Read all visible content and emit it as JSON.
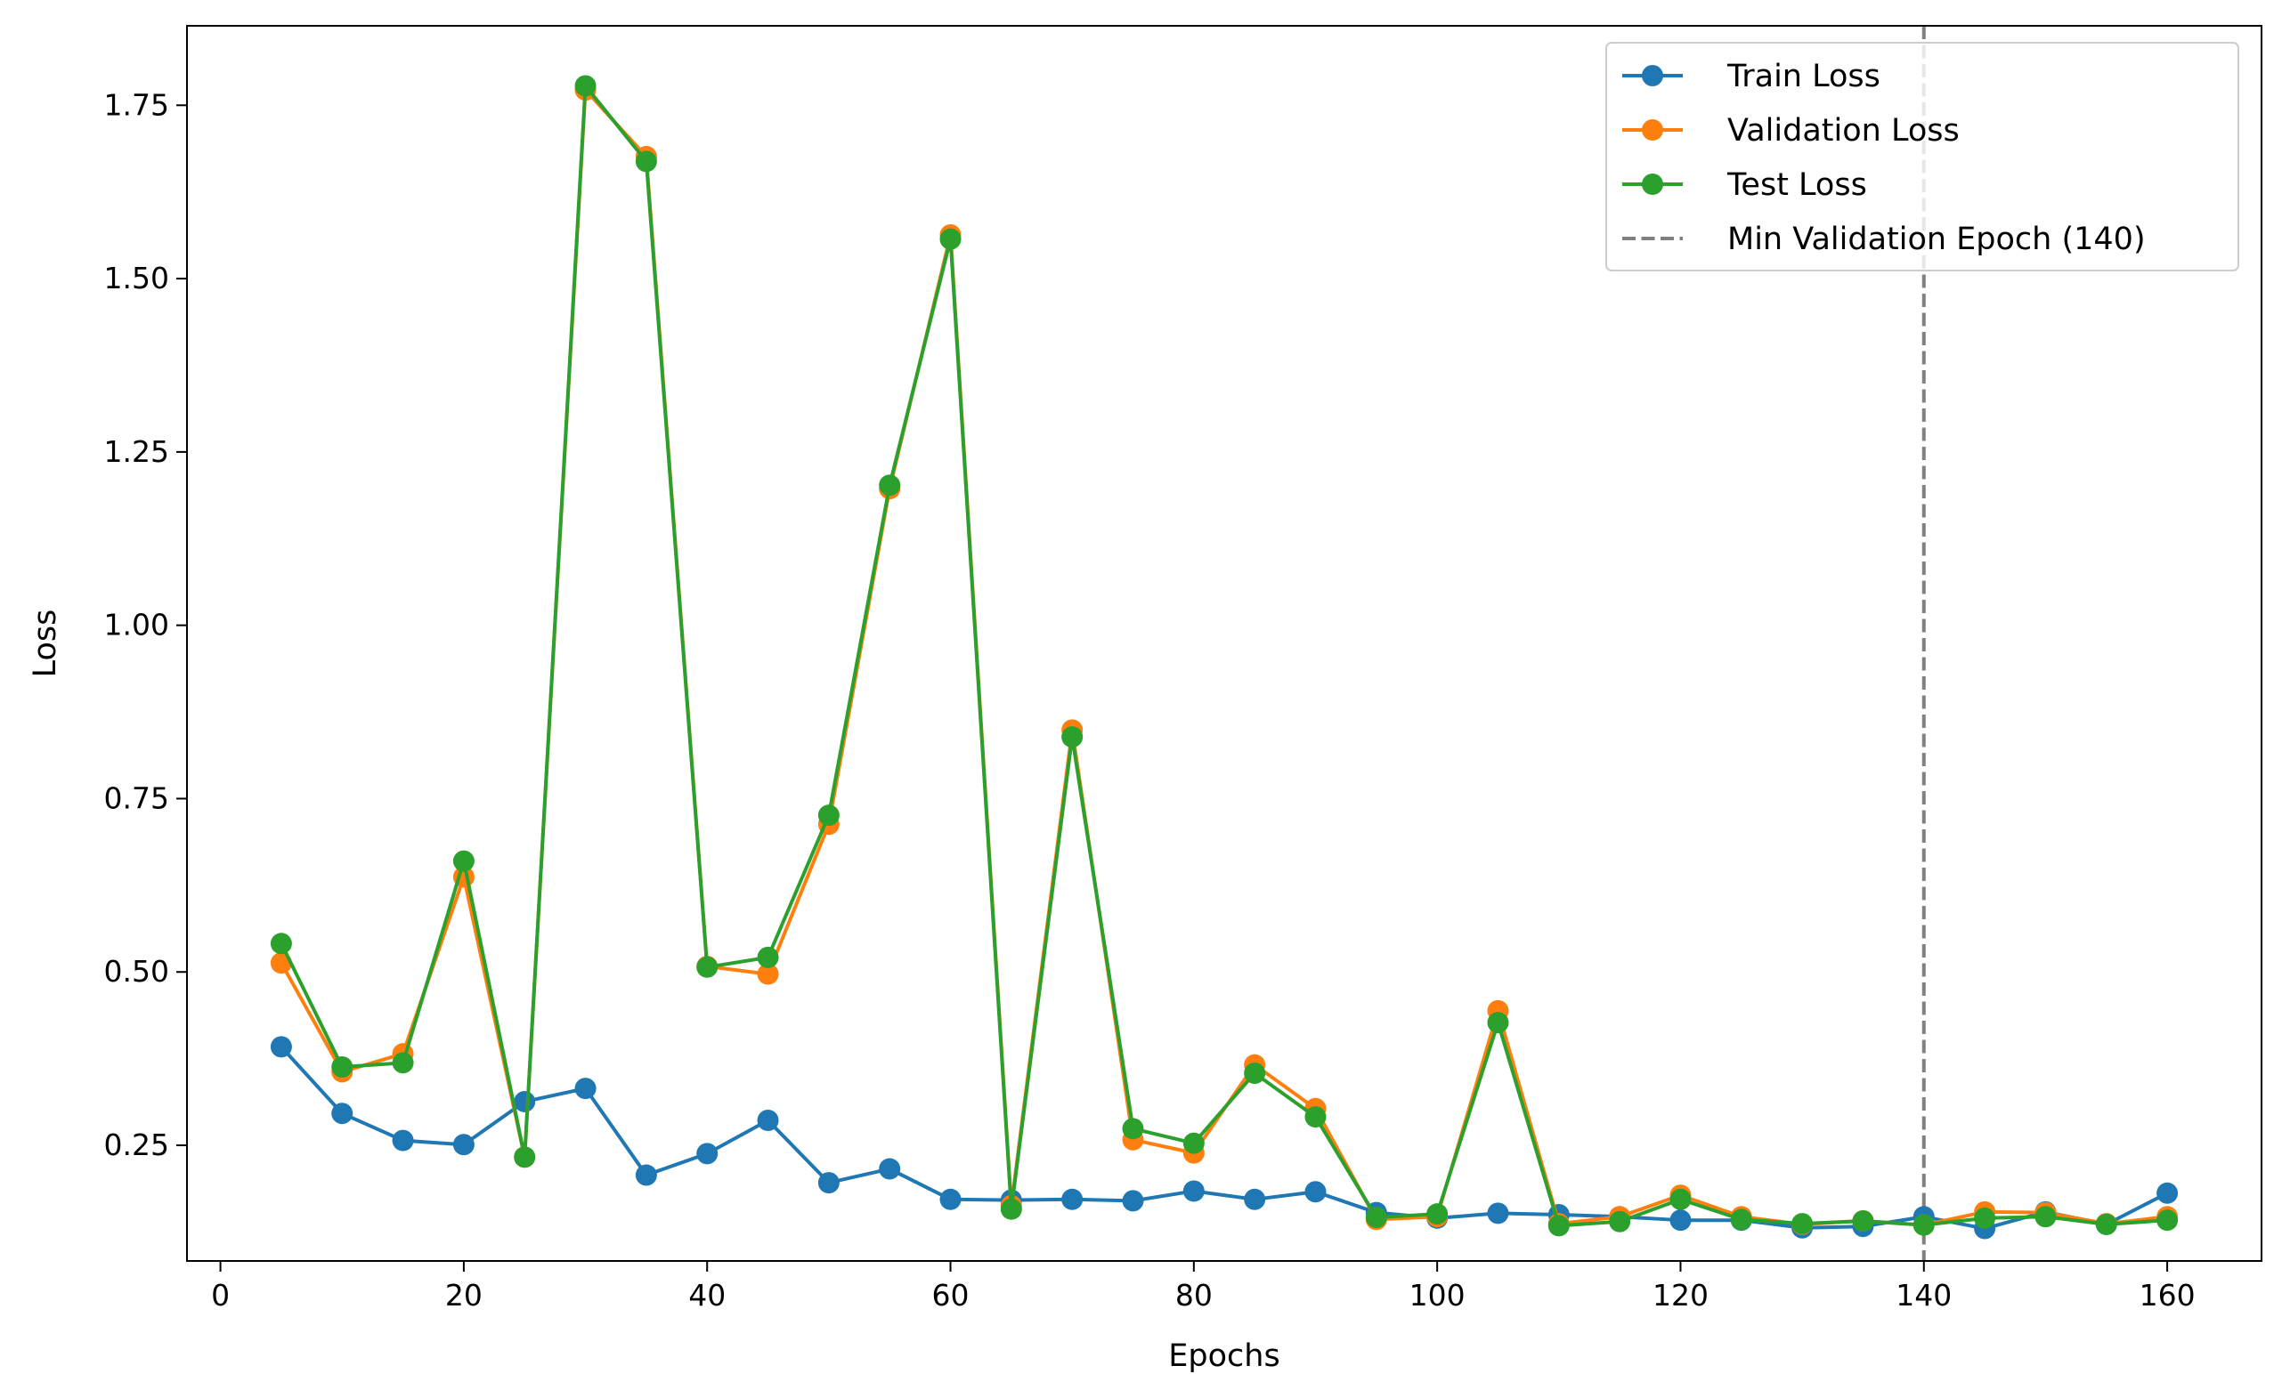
{
  "chart_data": {
    "type": "line",
    "title": "",
    "xlabel": "Epochs",
    "ylabel": "Loss",
    "xlim": [
      -2.75,
      167.75
    ],
    "ylim": [
      0.0832,
      1.8646
    ],
    "x_ticks": [
      0,
      20,
      40,
      60,
      80,
      100,
      120,
      140,
      160
    ],
    "x_tick_labels": [
      "0",
      "20",
      "40",
      "60",
      "80",
      "100",
      "120",
      "140",
      "160"
    ],
    "y_ticks": [
      0.25,
      0.5,
      0.75,
      1.0,
      1.25,
      1.5,
      1.75
    ],
    "y_tick_labels": [
      "0.25",
      "0.50",
      "0.75",
      "1.00",
      "1.25",
      "1.50",
      "1.75"
    ],
    "grid": false,
    "legend_position": "top-right",
    "x": [
      5,
      10,
      15,
      20,
      25,
      30,
      35,
      40,
      45,
      50,
      55,
      60,
      65,
      70,
      75,
      80,
      85,
      90,
      95,
      100,
      105,
      110,
      115,
      120,
      125,
      130,
      135,
      140,
      145,
      150,
      155,
      160
    ],
    "series": [
      {
        "name": "Train Loss",
        "color": "#1f77b4",
        "marker": "circle",
        "values": [
          0.392,
          0.296,
          0.257,
          0.251,
          0.313,
          0.332,
          0.207,
          0.238,
          0.286,
          0.196,
          0.216,
          0.172,
          0.171,
          0.172,
          0.17,
          0.184,
          0.172,
          0.183,
          0.153,
          0.145,
          0.152,
          0.15,
          0.147,
          0.142,
          0.142,
          0.131,
          0.133,
          0.147,
          0.13,
          0.154,
          0.136,
          0.181
        ]
      },
      {
        "name": "Validation Loss",
        "color": "#ff7f0e",
        "marker": "circle",
        "values": [
          0.513,
          0.356,
          0.382,
          0.637,
          0.233,
          1.772,
          1.676,
          0.508,
          0.497,
          0.713,
          1.197,
          1.563,
          0.163,
          0.849,
          0.258,
          0.239,
          0.366,
          0.303,
          0.143,
          0.147,
          0.444,
          0.137,
          0.147,
          0.178,
          0.147,
          0.136,
          0.141,
          0.135,
          0.154,
          0.153,
          0.137,
          0.147
        ]
      },
      {
        "name": "Test Loss",
        "color": "#2ca02c",
        "marker": "circle",
        "values": [
          0.541,
          0.363,
          0.369,
          0.66,
          0.233,
          1.778,
          1.669,
          0.507,
          0.521,
          0.726,
          1.202,
          1.557,
          0.158,
          0.839,
          0.274,
          0.253,
          0.354,
          0.291,
          0.146,
          0.151,
          0.427,
          0.134,
          0.14,
          0.172,
          0.143,
          0.137,
          0.141,
          0.135,
          0.145,
          0.147,
          0.136,
          0.142
        ]
      }
    ],
    "vline": {
      "name": "Min Validation Epoch (140)",
      "x": 140,
      "color": "#808080",
      "style": "dashed"
    }
  }
}
